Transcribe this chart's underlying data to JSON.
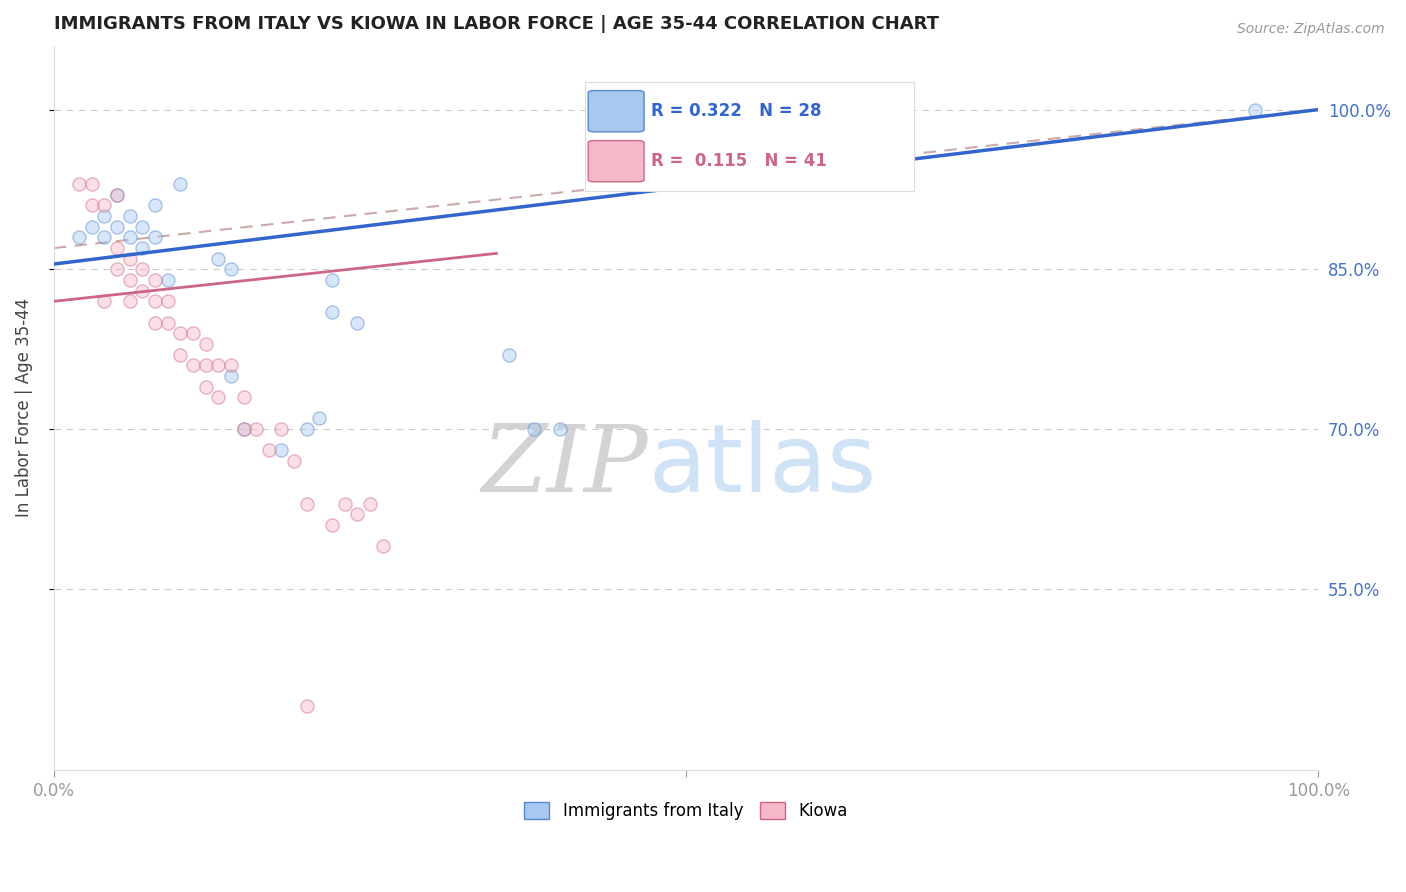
{
  "title": "IMMIGRANTS FROM ITALY VS KIOWA IN LABOR FORCE | AGE 35-44 CORRELATION CHART",
  "source_text": "Source: ZipAtlas.com",
  "ylabel": "In Labor Force | Age 35-44",
  "xlim": [
    0,
    1.0
  ],
  "ylim": [
    0.38,
    1.06
  ],
  "ytick_labels": [
    "100.0%",
    "85.0%",
    "70.0%",
    "55.0%"
  ],
  "ytick_values": [
    1.0,
    0.85,
    0.7,
    0.55
  ],
  "grid_color": "#cccccc",
  "background_color": "#ffffff",
  "italy_color": "#a8c8f0",
  "kiowa_color": "#f5b8c8",
  "italy_edge_color": "#5588cc",
  "kiowa_edge_color": "#cc6688",
  "trend_italy_color": "#3366cc",
  "trend_kiowa_color": "#cc6688",
  "trend_ref_color": "#ccaaaa",
  "legend_R_italy": "R = 0.322",
  "legend_N_italy": "N = 28",
  "legend_R_kiowa": "R =  0.115",
  "legend_N_kiowa": "N = 41",
  "legend_label_italy": "Immigrants from Italy",
  "legend_label_kiowa": "Kiowa",
  "legend_color_italy": "#a8c8f0",
  "legend_color_kiowa": "#f5b8c8",
  "watermark_ZIP": "ZIP",
  "watermark_atlas": "atlas",
  "italy_scatter_x": [
    0.02,
    0.03,
    0.04,
    0.04,
    0.05,
    0.05,
    0.06,
    0.06,
    0.07,
    0.07,
    0.08,
    0.08,
    0.09,
    0.1,
    0.13,
    0.14,
    0.14,
    0.15,
    0.18,
    0.2,
    0.21,
    0.22,
    0.22,
    0.24,
    0.36,
    0.95,
    0.38,
    0.4
  ],
  "italy_scatter_y": [
    0.88,
    0.89,
    0.88,
    0.9,
    0.89,
    0.92,
    0.9,
    0.88,
    0.89,
    0.87,
    0.88,
    0.91,
    0.84,
    0.93,
    0.86,
    0.85,
    0.75,
    0.7,
    0.68,
    0.7,
    0.71,
    0.84,
    0.81,
    0.8,
    0.77,
    1.0,
    0.7,
    0.7
  ],
  "kiowa_scatter_x": [
    0.02,
    0.03,
    0.03,
    0.04,
    0.04,
    0.05,
    0.05,
    0.05,
    0.06,
    0.06,
    0.06,
    0.07,
    0.07,
    0.08,
    0.08,
    0.08,
    0.09,
    0.09,
    0.1,
    0.1,
    0.11,
    0.11,
    0.12,
    0.12,
    0.12,
    0.13,
    0.13,
    0.14,
    0.15,
    0.15,
    0.16,
    0.17,
    0.18,
    0.19,
    0.2,
    0.22,
    0.23,
    0.24,
    0.25,
    0.26,
    0.2
  ],
  "kiowa_scatter_y": [
    0.93,
    0.91,
    0.93,
    0.91,
    0.82,
    0.92,
    0.87,
    0.85,
    0.86,
    0.84,
    0.82,
    0.85,
    0.83,
    0.84,
    0.82,
    0.8,
    0.82,
    0.8,
    0.79,
    0.77,
    0.79,
    0.76,
    0.78,
    0.76,
    0.74,
    0.76,
    0.73,
    0.76,
    0.73,
    0.7,
    0.7,
    0.68,
    0.7,
    0.67,
    0.63,
    0.61,
    0.63,
    0.62,
    0.63,
    0.59,
    0.44
  ],
  "marker_size": 90,
  "marker_alpha": 0.45,
  "trend_italy_x0": 0.0,
  "trend_italy_y0": 0.855,
  "trend_italy_x1": 1.0,
  "trend_italy_y1": 1.0,
  "trend_kiowa_x0": 0.0,
  "trend_kiowa_y0": 0.82,
  "trend_kiowa_x1": 0.35,
  "trend_kiowa_y1": 0.865,
  "ref_line_x0": 0.0,
  "ref_line_y0": 0.87,
  "ref_line_x1": 1.0,
  "ref_line_y1": 1.0
}
